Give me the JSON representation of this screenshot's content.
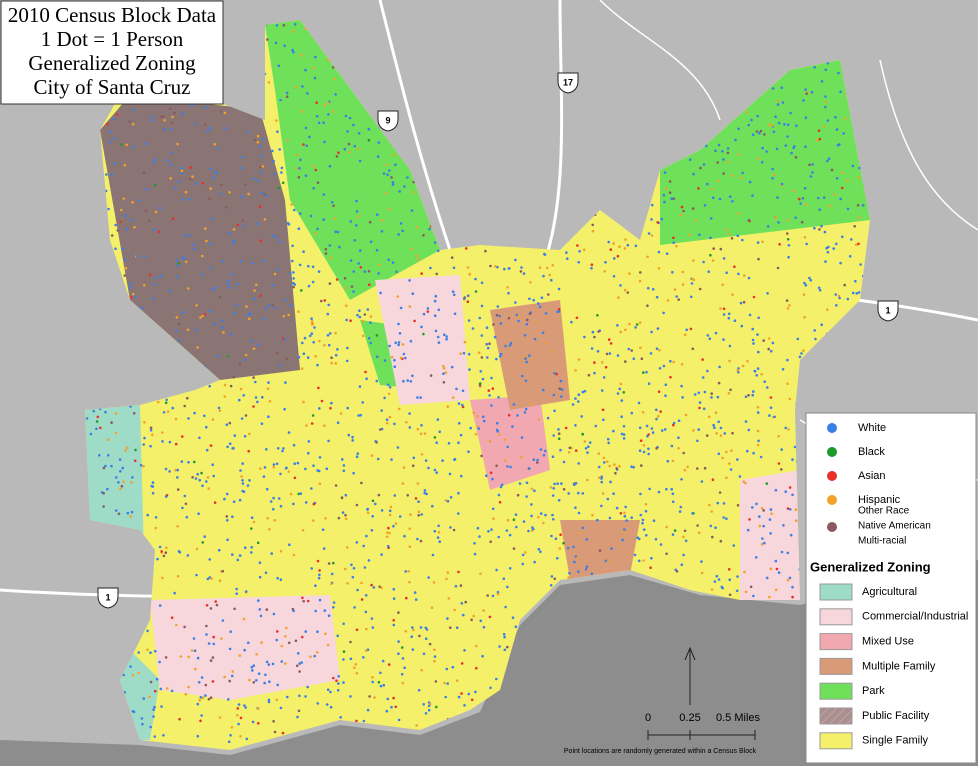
{
  "title": [
    "2010 Census Block Data",
    "1 Dot = 1 Person",
    "Generalized Zoning",
    "City of Santa Cruz"
  ],
  "road_shields": [
    "9",
    "17",
    "1",
    "1"
  ],
  "legend": {
    "race": [
      {
        "label": [
          "White"
        ],
        "color": "#3b7fe6"
      },
      {
        "label": [
          "Black"
        ],
        "color": "#1f9a2a"
      },
      {
        "label": [
          "Asian"
        ],
        "color": "#e8302a"
      },
      {
        "label": [
          "Hispanic"
        ],
        "color": "#f2a12a"
      },
      {
        "label": [
          "Other Race",
          "Native American",
          "Multi-racial"
        ],
        "color": "#8a5a5e"
      }
    ],
    "zoning_title": "Generalized Zoning",
    "zoning": [
      {
        "label": "Agricultural",
        "color": "#9fdcc8"
      },
      {
        "label": "Commercial/Industrial",
        "color": "#f7d6dc"
      },
      {
        "label": "Mixed Use",
        "color": "#f1a8b0"
      },
      {
        "label": "Multiple Family",
        "color": "#d99a78"
      },
      {
        "label": "Park",
        "color": "#6ee05a"
      },
      {
        "label": "Public Facility",
        "color": "#a89090"
      },
      {
        "label": "Single Family",
        "color": "#f5f06a"
      }
    ]
  },
  "scale": [
    "0",
    "0.25",
    "0.5 Miles"
  ],
  "note": "Point locations are randomly generated within a Census Block"
}
